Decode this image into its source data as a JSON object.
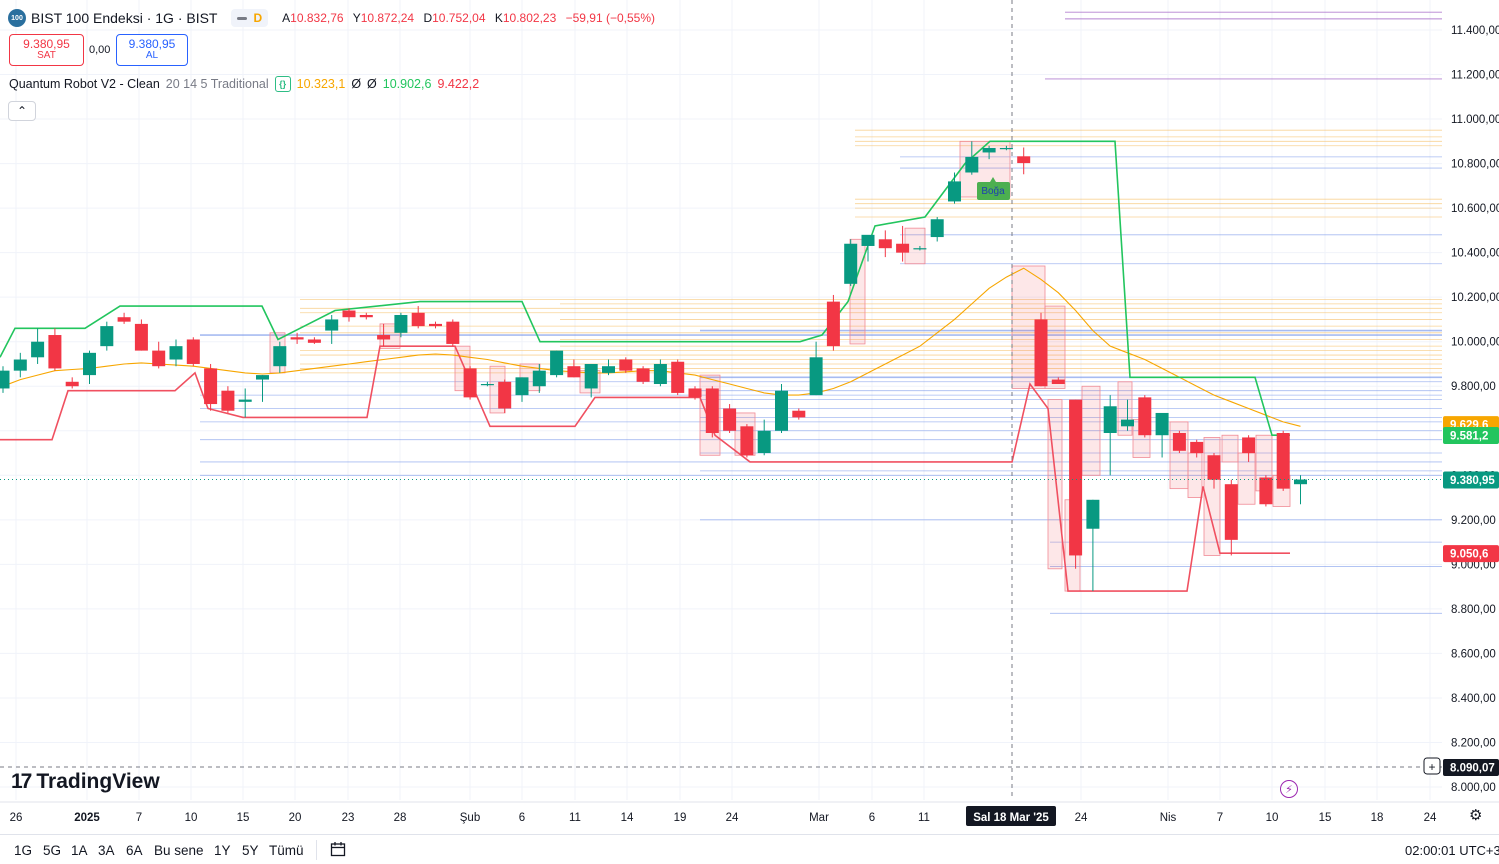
{
  "header": {
    "logo_text": "100",
    "symbol_title": "BIST 100 Endeksi · 1G · BIST",
    "status_letter": "D",
    "ohlc": {
      "open_label": "A",
      "open": "10.832,76",
      "high_label": "Y",
      "high": "10.872,24",
      "low_label": "D",
      "low": "10.752,04",
      "close_label": "K",
      "close": "10.802,23",
      "change": "−59,91 (−0,55%)"
    }
  },
  "trade": {
    "sell_price": "9.380,95",
    "sell_label": "SAT",
    "spread": "0,00",
    "buy_price": "9.380,95",
    "buy_label": "AL"
  },
  "indicator": {
    "name": "Quantum Robot V2 - Clean",
    "params": "20 14 5 Traditional",
    "v1": "10.323,1",
    "v2": "Ø",
    "v3": "Ø",
    "v4": "10.902,6",
    "v5": "9.422,2"
  },
  "colors": {
    "up": "#089981",
    "down": "#f23645",
    "trail_up": "#22c55e",
    "trail_down": "#f05060",
    "ma": "#f7a600",
    "box_fill": "rgba(242,54,69,0.12)",
    "box_stroke": "#f08a95"
  },
  "chart_data": {
    "type": "candlestick",
    "title": "BIST 100 Endeksi · 1G · BIST",
    "y_range": [
      8000,
      11500
    ],
    "y_ticks": [
      "8.000,00",
      "8.200,00",
      "8.400,00",
      "8.600,00",
      "8.800,00",
      "9.000,00",
      "9.200,00",
      "9.400,00",
      "9.600,00",
      "9.800,00",
      "10.000,00",
      "10.200,00",
      "10.400,00",
      "10.600,00",
      "10.800,00",
      "11.000,00",
      "11.200,00",
      "11.400,00"
    ],
    "x_ticks": [
      "26",
      "2025",
      "7",
      "10",
      "15",
      "20",
      "23",
      "28",
      "Şub",
      "6",
      "11",
      "14",
      "19",
      "24",
      "Mar",
      "6",
      "11",
      "24",
      "Nis",
      "7",
      "10",
      "15",
      "18",
      "24"
    ],
    "crosshair_label": "Sal 18 Mar '25",
    "price_labels": [
      {
        "text": "9.629,6",
        "value": 9629.6,
        "color": "#f7a600"
      },
      {
        "text": "9.581,2",
        "value": 9581.2,
        "color": "#22c55e"
      },
      {
        "text": "9.380,95",
        "value": 9380.95,
        "color": "#089981"
      },
      {
        "text": "9.050,6",
        "value": 9050.6,
        "color": "#f23645"
      },
      {
        "text": "8.090,07",
        "value": 8090.07,
        "color": "#131722"
      }
    ],
    "annotation": "Boğa",
    "candles": [
      {
        "o": 9790,
        "h": 9890,
        "l": 9770,
        "c": 9870
      },
      {
        "o": 9870,
        "h": 9950,
        "l": 9840,
        "c": 9920
      },
      {
        "o": 9930,
        "h": 10060,
        "l": 9900,
        "c": 10000
      },
      {
        "o": 10030,
        "h": 10060,
        "l": 9870,
        "c": 9880
      },
      {
        "o": 9820,
        "h": 9840,
        "l": 9790,
        "c": 9800
      },
      {
        "o": 9850,
        "h": 9960,
        "l": 9810,
        "c": 9950
      },
      {
        "o": 9980,
        "h": 10090,
        "l": 9960,
        "c": 10070
      },
      {
        "o": 10110,
        "h": 10130,
        "l": 10080,
        "c": 10090
      },
      {
        "o": 10080,
        "h": 10100,
        "l": 9960,
        "c": 9960
      },
      {
        "o": 9960,
        "h": 10000,
        "l": 9880,
        "c": 9890
      },
      {
        "o": 9920,
        "h": 10010,
        "l": 9890,
        "c": 9980
      },
      {
        "o": 10010,
        "h": 10020,
        "l": 9890,
        "c": 9900
      },
      {
        "o": 9880,
        "h": 9900,
        "l": 9690,
        "c": 9720
      },
      {
        "o": 9780,
        "h": 9800,
        "l": 9680,
        "c": 9690
      },
      {
        "o": 9730,
        "h": 9790,
        "l": 9660,
        "c": 9740
      },
      {
        "o": 9830,
        "h": 9850,
        "l": 9730,
        "c": 9850
      },
      {
        "o": 9890,
        "h": 10000,
        "l": 9860,
        "c": 9980
      },
      {
        "o": 10020,
        "h": 10040,
        "l": 9990,
        "c": 10010
      },
      {
        "o": 10010,
        "h": 10020,
        "l": 9990,
        "c": 9995
      },
      {
        "o": 10050,
        "h": 10120,
        "l": 9990,
        "c": 10100
      },
      {
        "o": 10140,
        "h": 10150,
        "l": 10090,
        "c": 10110
      },
      {
        "o": 10120,
        "h": 10130,
        "l": 10100,
        "c": 10110
      },
      {
        "o": 10030,
        "h": 10080,
        "l": 9980,
        "c": 10010
      },
      {
        "o": 10040,
        "h": 10130,
        "l": 10020,
        "c": 10120
      },
      {
        "o": 10130,
        "h": 10160,
        "l": 10060,
        "c": 10070
      },
      {
        "o": 10080,
        "h": 10090,
        "l": 10060,
        "c": 10070
      },
      {
        "o": 10090,
        "h": 10100,
        "l": 9980,
        "c": 9990
      },
      {
        "o": 9880,
        "h": 9890,
        "l": 9740,
        "c": 9750
      },
      {
        "o": 9810,
        "h": 9820,
        "l": 9800,
        "c": 9810
      },
      {
        "o": 9820,
        "h": 9830,
        "l": 9680,
        "c": 9700
      },
      {
        "o": 9760,
        "h": 9840,
        "l": 9730,
        "c": 9840
      },
      {
        "o": 9800,
        "h": 9900,
        "l": 9770,
        "c": 9870
      },
      {
        "o": 9850,
        "h": 9960,
        "l": 9840,
        "c": 9960
      },
      {
        "o": 9890,
        "h": 9920,
        "l": 9840,
        "c": 9840
      },
      {
        "o": 9790,
        "h": 9900,
        "l": 9750,
        "c": 9900
      },
      {
        "o": 9860,
        "h": 9920,
        "l": 9850,
        "c": 9890
      },
      {
        "o": 9920,
        "h": 9930,
        "l": 9860,
        "c": 9870
      },
      {
        "o": 9880,
        "h": 9890,
        "l": 9810,
        "c": 9820
      },
      {
        "o": 9810,
        "h": 9920,
        "l": 9800,
        "c": 9900
      },
      {
        "o": 9910,
        "h": 9920,
        "l": 9760,
        "c": 9770
      },
      {
        "o": 9790,
        "h": 9800,
        "l": 9740,
        "c": 9750
      },
      {
        "o": 9790,
        "h": 9800,
        "l": 9570,
        "c": 9590
      },
      {
        "o": 9700,
        "h": 9720,
        "l": 9590,
        "c": 9600
      },
      {
        "o": 9620,
        "h": 9630,
        "l": 9480,
        "c": 9490
      },
      {
        "o": 9500,
        "h": 9650,
        "l": 9490,
        "c": 9600
      },
      {
        "o": 9600,
        "h": 9810,
        "l": 9590,
        "c": 9780
      },
      {
        "o": 9690,
        "h": 9700,
        "l": 9650,
        "c": 9660
      },
      {
        "o": 9760,
        "h": 10000,
        "l": 9760,
        "c": 9930
      },
      {
        "o": 10180,
        "h": 10210,
        "l": 9960,
        "c": 9980
      },
      {
        "o": 10260,
        "h": 10460,
        "l": 10250,
        "c": 10440
      },
      {
        "o": 10430,
        "h": 10470,
        "l": 10360,
        "c": 10480
      },
      {
        "o": 10460,
        "h": 10500,
        "l": 10380,
        "c": 10420
      },
      {
        "o": 10440,
        "h": 10520,
        "l": 10360,
        "c": 10400
      },
      {
        "o": 10420,
        "h": 10430,
        "l": 10410,
        "c": 10420
      },
      {
        "o": 10470,
        "h": 10560,
        "l": 10450,
        "c": 10550
      },
      {
        "o": 10630,
        "h": 10760,
        "l": 10620,
        "c": 10720
      },
      {
        "o": 10760,
        "h": 10900,
        "l": 10750,
        "c": 10830
      },
      {
        "o": 10850,
        "h": 10880,
        "l": 10820,
        "c": 10870
      },
      {
        "o": 10870,
        "h": 10880,
        "l": 10860,
        "c": 10870
      },
      {
        "o": 10832.76,
        "h": 10872.24,
        "l": 10752.04,
        "c": 10802.23
      },
      {
        "o": 10100,
        "h": 10130,
        "l": 9800,
        "c": 9800
      },
      {
        "o": 9830,
        "h": 9840,
        "l": 9810,
        "c": 9810
      },
      {
        "o": 9740,
        "h": 9740,
        "l": 8980,
        "c": 9040
      },
      {
        "o": 9160,
        "h": 9290,
        "l": 8880,
        "c": 9290
      },
      {
        "o": 9590,
        "h": 9760,
        "l": 9400,
        "c": 9710
      },
      {
        "o": 9620,
        "h": 9740,
        "l": 9600,
        "c": 9650
      },
      {
        "o": 9750,
        "h": 9760,
        "l": 9570,
        "c": 9580
      },
      {
        "o": 9580,
        "h": 9650,
        "l": 9480,
        "c": 9680
      },
      {
        "o": 9590,
        "h": 9600,
        "l": 9500,
        "c": 9510
      },
      {
        "o": 9550,
        "h": 9560,
        "l": 9480,
        "c": 9500
      },
      {
        "o": 9490,
        "h": 9500,
        "l": 9340,
        "c": 9380
      },
      {
        "o": 9360,
        "h": 9380,
        "l": 9040,
        "c": 9110
      },
      {
        "o": 9570,
        "h": 9580,
        "l": 9460,
        "c": 9500
      },
      {
        "o": 9390,
        "h": 9400,
        "l": 9260,
        "c": 9270
      },
      {
        "o": 9590,
        "h": 9600,
        "l": 9330,
        "c": 9340
      },
      {
        "o": 9360,
        "h": 9400,
        "l": 9270,
        "c": 9380.95
      }
    ]
  },
  "timeframes": [
    "1G",
    "5G",
    "1A",
    "3A",
    "6A",
    "Bu sene",
    "1Y",
    "5Y",
    "Tümü"
  ],
  "watermark": "TradingView",
  "clock": "02:00:01 UTC+3"
}
